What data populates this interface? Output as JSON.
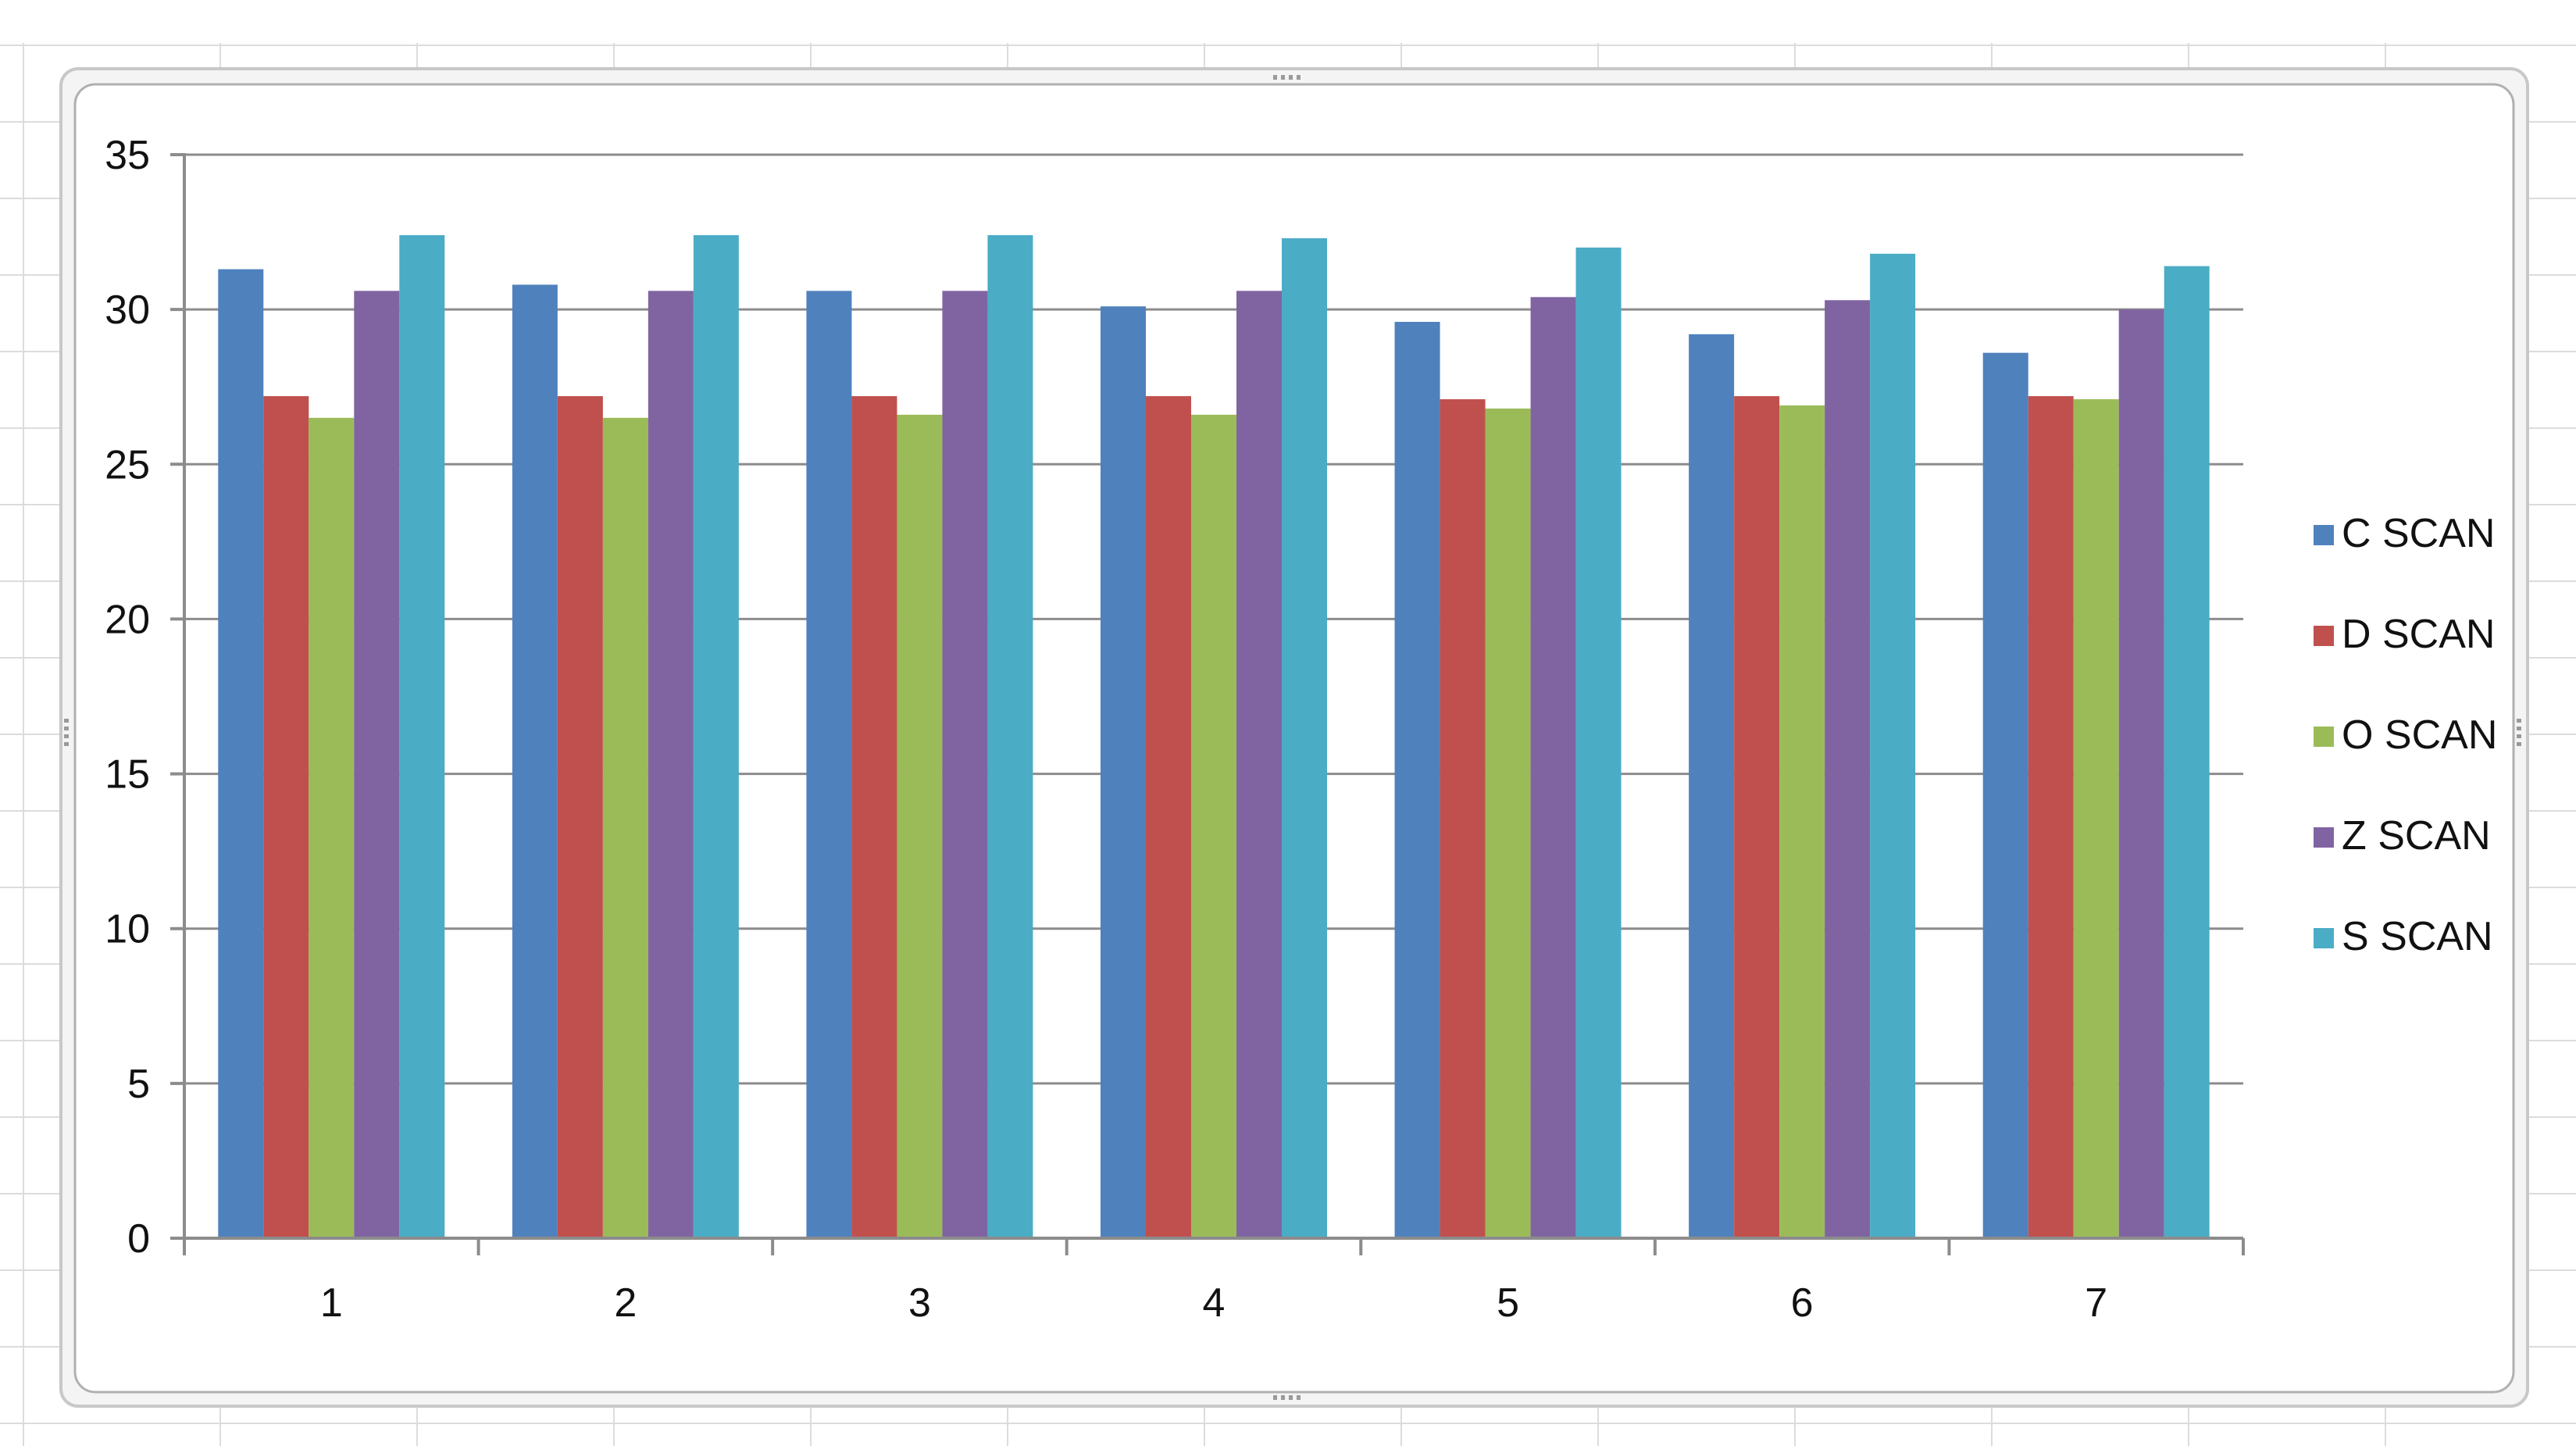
{
  "chart_data": {
    "type": "bar",
    "title": "",
    "xlabel": "",
    "ylabel": "",
    "categories": [
      "1",
      "2",
      "3",
      "4",
      "5",
      "6",
      "7"
    ],
    "ylim": [
      0,
      35
    ],
    "yticks": [
      "0",
      "5",
      "10",
      "15",
      "20",
      "25",
      "30",
      "35"
    ],
    "grid": true,
    "legend_position": "right",
    "series": [
      {
        "name": "C SCAN",
        "color": "#4f81bd",
        "values": [
          31.3,
          30.8,
          30.6,
          30.1,
          29.6,
          29.2,
          28.6
        ]
      },
      {
        "name": "D SCAN",
        "color": "#c0504d",
        "values": [
          27.2,
          27.2,
          27.2,
          27.2,
          27.1,
          27.2,
          27.2
        ]
      },
      {
        "name": "O SCAN",
        "color": "#9bbb59",
        "values": [
          26.5,
          26.5,
          26.6,
          26.6,
          26.8,
          26.9,
          27.1
        ]
      },
      {
        "name": "Z SCAN",
        "color": "#8064a2",
        "values": [
          30.6,
          30.6,
          30.6,
          30.6,
          30.4,
          30.3,
          30.0
        ]
      },
      {
        "name": "S SCAN",
        "color": "#4bacc6",
        "values": [
          32.4,
          32.4,
          32.4,
          32.3,
          32.0,
          31.8,
          31.4
        ]
      }
    ]
  }
}
